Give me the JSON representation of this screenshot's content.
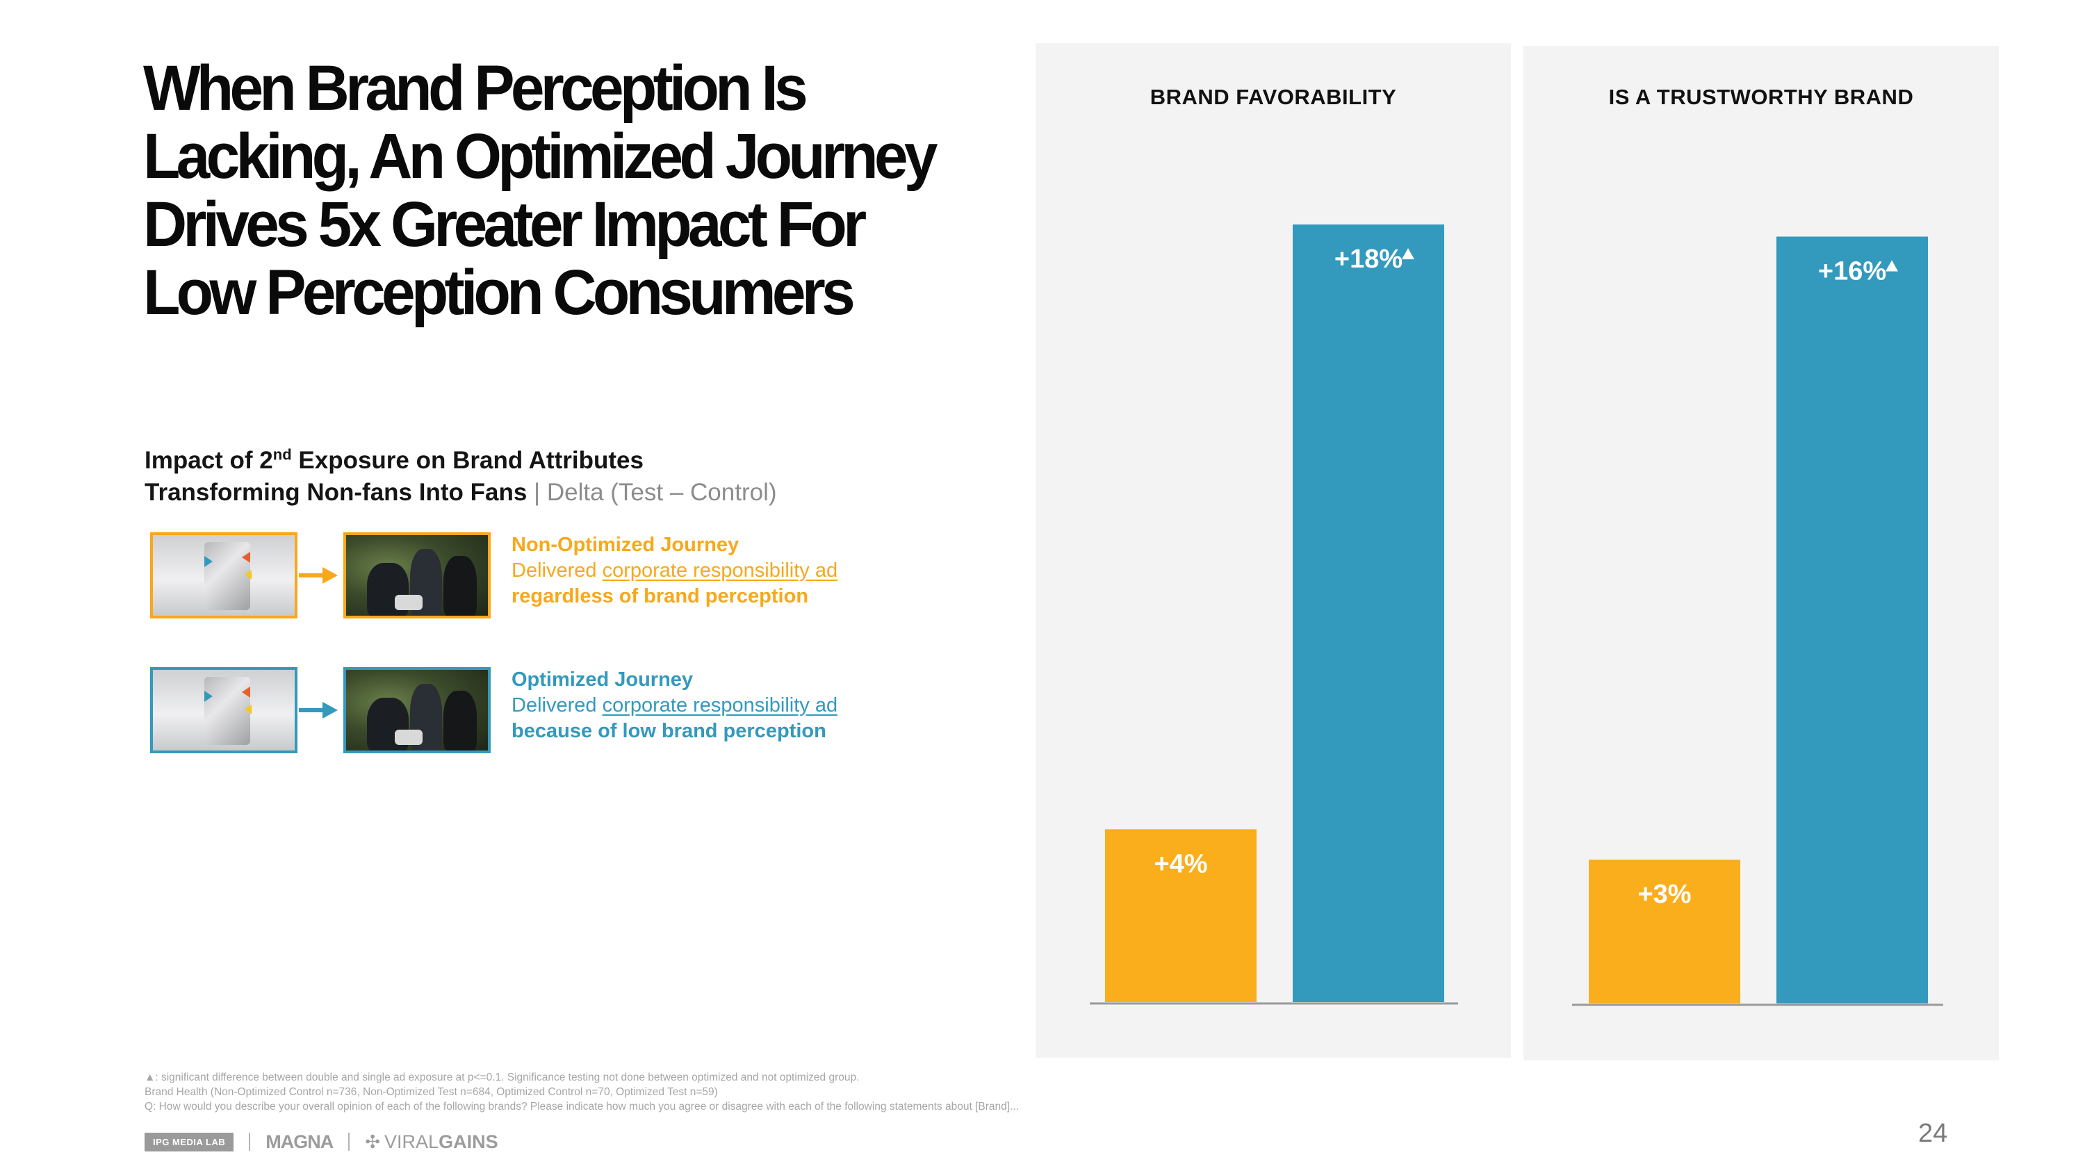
{
  "headline": "When Brand Perception Is Lacking, An Optimized Journey Drives 5x Greater Impact For Low Perception Consumers",
  "subtitle": {
    "line1_pre": "Impact of 2",
    "line1_sup": "nd",
    "line1_post": " Exposure on Brand Attributes",
    "line2_bold": "Transforming Non-fans Into Fans",
    "line2_sep": " | ",
    "line2_delta": "Delta (Test – Control)"
  },
  "legend": [
    {
      "title": "Non-Optimized Journey",
      "text_pre": "Delivered ",
      "text_link": "corporate responsibility ad",
      "text_post": " regardless of brand perception",
      "color": "#F7A81B"
    },
    {
      "title": "Optimized Journey",
      "text_pre": "Delivered ",
      "text_link": "corporate responsibility ad",
      "text_post": " because of low brand perception",
      "color": "#3399BD"
    }
  ],
  "colors": {
    "non_optimized": "#FBAE1C",
    "optimized": "#3399BD",
    "panel_bg": "#F3F3F3"
  },
  "chart_data": [
    {
      "type": "bar",
      "title": "BRAND FAVORABILITY",
      "categories": [
        "Non-Optimized Journey",
        "Optimized Journey"
      ],
      "values": [
        4,
        18
      ],
      "labels": [
        "+4%",
        "+18%"
      ],
      "significant": [
        false,
        true
      ],
      "ylim": [
        0,
        18.5
      ]
    },
    {
      "type": "bar",
      "title": "IS A TRUSTWORTHY BRAND",
      "categories": [
        "Non-Optimized Journey",
        "Optimized Journey"
      ],
      "values": [
        3,
        16
      ],
      "labels": [
        "+3%",
        "+16%"
      ],
      "significant": [
        false,
        true
      ],
      "ylim": [
        0,
        16.5
      ]
    }
  ],
  "footnotes": [
    "▲: significant difference between double and single ad exposure at p<=0.1. Significance testing not done between optimized and not optimized group.",
    "Brand Health (Non-Optimized Control n=736, Non-Optimized Test n=684, Optimized Control n=70, Optimized Test n=59)",
    "Q: How would you describe your overall opinion of each of the following brands? Please indicate how much you agree or disagree with each of the following statements about [Brand]..."
  ],
  "footer": {
    "ipg": "IPG MEDIA LAB",
    "magna": "MAGNA",
    "viral_gains_light": "VIRAL",
    "viral_gains_bold": "GAINS"
  },
  "page_number": "24"
}
